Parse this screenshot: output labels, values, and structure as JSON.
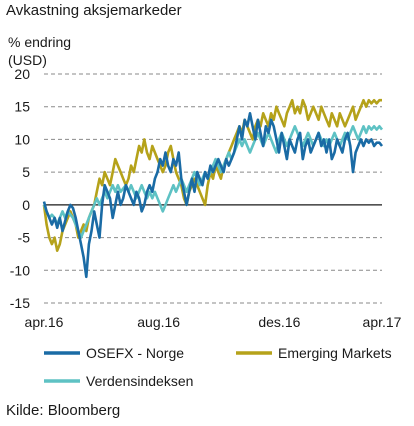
{
  "title": "Avkastning aksjemarkeder",
  "unit_line1": "% endring",
  "unit_line2": "(USD)",
  "source": "Kilde: Bloomberg",
  "chart_data": {
    "type": "line",
    "ylim": [
      -15,
      20
    ],
    "yticks": [
      20,
      15,
      10,
      5,
      0,
      -5,
      -10,
      -15
    ],
    "xticks": [
      "apr.16",
      "aug.16",
      "des.16",
      "apr.17"
    ],
    "grid": "horizontal dashed",
    "legend_position": "bottom",
    "series": [
      {
        "name": "OSEFX - Norge",
        "color": "#1a6ba5",
        "x": [
          0,
          2,
          4,
          6,
          8,
          10,
          12,
          14,
          16,
          18,
          20,
          22,
          24,
          26,
          28,
          30,
          32,
          34,
          36,
          38,
          40,
          42,
          44,
          46,
          48,
          50,
          52,
          54,
          56,
          58,
          60,
          62,
          64,
          66,
          68,
          70,
          72,
          74,
          76,
          78,
          80,
          82,
          84,
          86,
          88,
          90,
          92,
          94,
          96,
          98,
          100,
          102,
          104,
          106,
          108,
          110,
          112,
          114,
          116,
          118,
          120,
          122,
          124,
          126,
          128,
          130,
          132,
          134,
          136,
          138,
          140,
          142,
          144,
          146,
          148,
          150,
          152,
          154,
          156,
          158,
          160,
          162,
          164,
          166,
          168,
          170,
          172,
          174,
          176,
          178,
          180,
          182,
          184,
          186,
          188,
          190,
          192,
          194,
          196,
          198,
          200,
          202,
          204,
          206,
          208,
          210,
          212,
          214,
          216,
          218,
          220,
          222,
          224,
          226,
          228,
          230,
          232,
          234,
          236,
          238,
          240,
          242,
          244,
          246,
          248,
          250,
          252,
          254,
          256
        ],
        "values": [
          0.5,
          -1,
          -2,
          -3,
          -2,
          -3.5,
          -2,
          -4,
          -2.5,
          -1,
          0,
          -0.5,
          -2,
          -4,
          -6,
          -8,
          -11,
          -6,
          -4,
          -1,
          -3,
          -5,
          0,
          3,
          2,
          1,
          -2,
          0,
          2,
          0,
          1,
          3,
          2,
          1,
          0,
          2,
          1,
          -1,
          0,
          2,
          3,
          2,
          4,
          5,
          7,
          6,
          8,
          6,
          5,
          7,
          6,
          8,
          4,
          2,
          0,
          2,
          4,
          2,
          5,
          4,
          3,
          5,
          4,
          6,
          5,
          6,
          7,
          6,
          5,
          7,
          6,
          7,
          8,
          10,
          12,
          10,
          13,
          12,
          14,
          12,
          10,
          13,
          11,
          9,
          12,
          11,
          13,
          12,
          10,
          8,
          11,
          9,
          7,
          10,
          9,
          8,
          10,
          11,
          7,
          9,
          10,
          8,
          9,
          10,
          11,
          9,
          10,
          8,
          10,
          7,
          8,
          10,
          9,
          8,
          10,
          11,
          9,
          5,
          8,
          9,
          10,
          9,
          10,
          9.5,
          10,
          9,
          9.5,
          9.5,
          9
        ]
      },
      {
        "name": "Emerging Markets",
        "color": "#b5a21a",
        "x": [
          0,
          2,
          4,
          6,
          8,
          10,
          12,
          14,
          16,
          18,
          20,
          22,
          24,
          26,
          28,
          30,
          32,
          34,
          36,
          38,
          40,
          42,
          44,
          46,
          48,
          50,
          52,
          54,
          56,
          58,
          60,
          62,
          64,
          66,
          68,
          70,
          72,
          74,
          76,
          78,
          80,
          82,
          84,
          86,
          88,
          90,
          92,
          94,
          96,
          98,
          100,
          102,
          104,
          106,
          108,
          110,
          112,
          114,
          116,
          118,
          120,
          122,
          124,
          126,
          128,
          130,
          132,
          134,
          136,
          138,
          140,
          142,
          144,
          146,
          148,
          150,
          152,
          154,
          156,
          158,
          160,
          162,
          164,
          166,
          168,
          170,
          172,
          174,
          176,
          178,
          180,
          182,
          184,
          186,
          188,
          190,
          192,
          194,
          196,
          198,
          200,
          202,
          204,
          206,
          208,
          210,
          212,
          214,
          216,
          218,
          220,
          222,
          224,
          226,
          228,
          230,
          232,
          234,
          236,
          238,
          240,
          242,
          244,
          246,
          248,
          250,
          252,
          254,
          256
        ],
        "values": [
          0,
          -3,
          -5,
          -6,
          -5,
          -7,
          -6,
          -4,
          -3,
          -2,
          -1,
          -2,
          -3,
          -5,
          -4,
          -3,
          -4,
          -2,
          -1,
          0,
          2,
          4,
          3,
          5,
          4,
          3,
          5,
          7,
          6,
          5,
          4,
          3,
          4,
          6,
          5,
          7,
          9,
          8,
          10,
          8,
          7,
          9,
          8,
          7,
          6,
          5,
          6,
          8,
          9,
          7,
          5,
          4,
          3,
          1,
          0,
          2,
          3,
          4,
          3,
          2,
          1,
          0,
          3,
          5,
          4,
          6,
          5,
          4,
          6,
          7,
          8,
          9,
          10,
          11,
          12,
          11,
          13,
          12,
          11,
          10,
          12,
          13,
          12,
          14,
          13,
          12,
          14,
          13,
          15,
          14,
          13,
          12,
          14,
          15,
          16,
          14,
          15,
          14,
          16,
          15,
          13,
          14,
          15,
          14,
          13,
          15,
          14,
          13,
          12,
          14,
          13,
          12,
          14,
          13,
          12,
          13,
          14,
          15,
          13,
          14,
          15,
          16,
          15,
          16,
          15.5,
          16,
          15.5,
          16,
          16
        ]
      },
      {
        "name": "Verdensindeksen",
        "color": "#5ec2c4",
        "x": [
          0,
          2,
          4,
          6,
          8,
          10,
          12,
          14,
          16,
          18,
          20,
          22,
          24,
          26,
          28,
          30,
          32,
          34,
          36,
          38,
          40,
          42,
          44,
          46,
          48,
          50,
          52,
          54,
          56,
          58,
          60,
          62,
          64,
          66,
          68,
          70,
          72,
          74,
          76,
          78,
          80,
          82,
          84,
          86,
          88,
          90,
          92,
          94,
          96,
          98,
          100,
          102,
          104,
          106,
          108,
          110,
          112,
          114,
          116,
          118,
          120,
          122,
          124,
          126,
          128,
          130,
          132,
          134,
          136,
          138,
          140,
          142,
          144,
          146,
          148,
          150,
          152,
          154,
          156,
          158,
          160,
          162,
          164,
          166,
          168,
          170,
          172,
          174,
          176,
          178,
          180,
          182,
          184,
          186,
          188,
          190,
          192,
          194,
          196,
          198,
          200,
          202,
          204,
          206,
          208,
          210,
          212,
          214,
          216,
          218,
          220,
          222,
          224,
          226,
          228,
          230,
          232,
          234,
          236,
          238,
          240,
          242,
          244,
          246,
          248,
          250,
          252,
          254,
          256
        ],
        "values": [
          0,
          -1,
          -2,
          -1.5,
          -2,
          -3,
          -2,
          -1,
          -2,
          -1,
          -1.5,
          -2,
          -3,
          -4,
          -5,
          -4,
          -3,
          -2,
          -1,
          0,
          1,
          0,
          1,
          2,
          1,
          2,
          3,
          2,
          3,
          2,
          2.5,
          3,
          2,
          3,
          2,
          1,
          2,
          3,
          2,
          1,
          2,
          1,
          2,
          1,
          0,
          -1,
          0,
          1,
          2,
          3,
          2,
          3,
          4,
          3,
          2,
          3,
          4,
          5,
          4,
          3,
          4,
          5,
          4,
          5,
          6,
          7,
          6,
          5,
          6,
          7,
          8,
          7,
          8,
          9,
          10,
          9,
          10,
          9,
          8,
          9,
          10,
          11,
          10,
          9,
          10,
          11,
          10,
          9,
          8,
          10,
          11,
          10,
          9,
          10,
          11,
          12,
          11,
          10,
          9,
          10,
          11,
          10,
          9,
          10,
          11,
          10,
          9,
          10,
          9,
          10,
          11,
          10,
          9,
          10,
          11,
          10,
          11,
          12,
          11,
          10,
          11,
          12,
          11,
          12,
          11.5,
          12,
          11.5,
          12,
          11.5
        ]
      }
    ]
  }
}
